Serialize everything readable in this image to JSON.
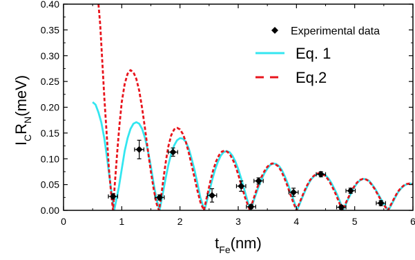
{
  "chart_data": {
    "type": "scatter",
    "xlabel": {
      "main": "t",
      "sub": "Fe",
      "unit": "(nm)"
    },
    "ylabel": {
      "p1": "I",
      "s1": "C",
      "p2": "R",
      "s2": "N",
      "unit": "(meV)"
    },
    "xlim": [
      0,
      6
    ],
    "ylim": [
      0,
      0.4
    ],
    "x_ticks": [
      "0",
      "1",
      "2",
      "3",
      "4",
      "5",
      "6"
    ],
    "y_ticks": [
      "0.00",
      "0.05",
      "0.10",
      "0.15",
      "0.20",
      "0.25",
      "0.30",
      "0.35",
      "0.40"
    ],
    "grid": false,
    "legend_position": "top-right",
    "series": [
      {
        "name": "Experimental data",
        "kind": "points",
        "color": "#000000",
        "points": [
          {
            "x": 0.85,
            "y": 0.027,
            "xerr": 0.08,
            "yerr": 0.005
          },
          {
            "x": 1.3,
            "y": 0.118,
            "xerr": 0.08,
            "yerr": 0.018
          },
          {
            "x": 1.65,
            "y": 0.025,
            "xerr": 0.08,
            "yerr": 0.005
          },
          {
            "x": 1.88,
            "y": 0.113,
            "xerr": 0.08,
            "yerr": 0.008
          },
          {
            "x": 2.55,
            "y": 0.029,
            "xerr": 0.08,
            "yerr": 0.013
          },
          {
            "x": 3.05,
            "y": 0.047,
            "xerr": 0.08,
            "yerr": 0.01
          },
          {
            "x": 3.22,
            "y": 0.007,
            "xerr": 0.08,
            "yerr": 0.004
          },
          {
            "x": 3.35,
            "y": 0.057,
            "xerr": 0.08,
            "yerr": 0.006
          },
          {
            "x": 3.95,
            "y": 0.035,
            "xerr": 0.08,
            "yerr": 0.008
          },
          {
            "x": 4.42,
            "y": 0.07,
            "xerr": 0.08,
            "yerr": 0.005
          },
          {
            "x": 4.77,
            "y": 0.006,
            "xerr": 0.08,
            "yerr": 0.004
          },
          {
            "x": 4.93,
            "y": 0.038,
            "xerr": 0.08,
            "yerr": 0.005
          },
          {
            "x": 5.45,
            "y": 0.014,
            "xerr": 0.08,
            "yerr": 0.005
          }
        ]
      },
      {
        "name": "Eq. 1",
        "kind": "line",
        "style": "solid",
        "color": "#33E6F0",
        "points": [
          [
            0.5,
            0.21
          ],
          [
            0.55,
            0.205
          ],
          [
            0.6,
            0.19
          ],
          [
            0.65,
            0.17
          ],
          [
            0.7,
            0.14
          ],
          [
            0.75,
            0.1
          ],
          [
            0.8,
            0.055
          ],
          [
            0.85,
            0.015
          ],
          [
            0.87,
            0.0
          ],
          [
            0.95,
            0.045
          ],
          [
            1.0,
            0.08
          ],
          [
            1.05,
            0.115
          ],
          [
            1.1,
            0.14
          ],
          [
            1.15,
            0.158
          ],
          [
            1.2,
            0.168
          ],
          [
            1.25,
            0.171
          ],
          [
            1.3,
            0.168
          ],
          [
            1.35,
            0.158
          ],
          [
            1.4,
            0.14
          ],
          [
            1.45,
            0.115
          ],
          [
            1.5,
            0.085
          ],
          [
            1.55,
            0.05
          ],
          [
            1.6,
            0.02
          ],
          [
            1.65,
            0.0
          ],
          [
            1.7,
            0.03
          ],
          [
            1.75,
            0.06
          ],
          [
            1.8,
            0.088
          ],
          [
            1.85,
            0.11
          ],
          [
            1.9,
            0.126
          ],
          [
            1.95,
            0.136
          ],
          [
            2.0,
            0.14
          ],
          [
            2.05,
            0.139
          ],
          [
            2.1,
            0.133
          ],
          [
            2.15,
            0.12
          ],
          [
            2.2,
            0.1
          ],
          [
            2.25,
            0.078
          ],
          [
            2.3,
            0.052
          ],
          [
            2.35,
            0.025
          ],
          [
            2.42,
            0.0
          ],
          [
            2.5,
            0.035
          ],
          [
            2.55,
            0.058
          ],
          [
            2.6,
            0.078
          ],
          [
            2.65,
            0.094
          ],
          [
            2.7,
            0.106
          ],
          [
            2.75,
            0.113
          ],
          [
            2.8,
            0.115
          ],
          [
            2.85,
            0.113
          ],
          [
            2.9,
            0.106
          ],
          [
            2.95,
            0.095
          ],
          [
            3.0,
            0.08
          ],
          [
            3.05,
            0.062
          ],
          [
            3.1,
            0.042
          ],
          [
            3.15,
            0.022
          ],
          [
            3.21,
            0.0
          ],
          [
            3.3,
            0.03
          ],
          [
            3.35,
            0.046
          ],
          [
            3.4,
            0.06
          ],
          [
            3.45,
            0.072
          ],
          [
            3.5,
            0.081
          ],
          [
            3.55,
            0.088
          ],
          [
            3.6,
            0.091
          ],
          [
            3.65,
            0.09
          ],
          [
            3.7,
            0.086
          ],
          [
            3.75,
            0.078
          ],
          [
            3.8,
            0.066
          ],
          [
            3.85,
            0.052
          ],
          [
            3.9,
            0.036
          ],
          [
            3.95,
            0.02
          ],
          [
            4.01,
            0.0
          ],
          [
            4.1,
            0.025
          ],
          [
            4.15,
            0.038
          ],
          [
            4.2,
            0.05
          ],
          [
            4.25,
            0.06
          ],
          [
            4.3,
            0.066
          ],
          [
            4.35,
            0.07
          ],
          [
            4.4,
            0.072
          ],
          [
            4.45,
            0.071
          ],
          [
            4.5,
            0.068
          ],
          [
            4.55,
            0.062
          ],
          [
            4.6,
            0.053
          ],
          [
            4.65,
            0.042
          ],
          [
            4.7,
            0.03
          ],
          [
            4.75,
            0.016
          ],
          [
            4.8,
            0.0
          ],
          [
            4.88,
            0.02
          ],
          [
            4.95,
            0.036
          ],
          [
            5.0,
            0.046
          ],
          [
            5.05,
            0.054
          ],
          [
            5.1,
            0.059
          ],
          [
            5.15,
            0.061
          ],
          [
            5.2,
            0.06
          ],
          [
            5.25,
            0.057
          ],
          [
            5.3,
            0.05
          ],
          [
            5.35,
            0.042
          ],
          [
            5.4,
            0.032
          ],
          [
            5.45,
            0.022
          ],
          [
            5.5,
            0.012
          ],
          [
            5.58,
            0.0
          ],
          [
            5.65,
            0.015
          ],
          [
            5.7,
            0.026
          ],
          [
            5.75,
            0.036
          ],
          [
            5.8,
            0.043
          ],
          [
            5.85,
            0.048
          ],
          [
            5.9,
            0.051
          ],
          [
            5.95,
            0.052
          ],
          [
            6.0,
            0.051
          ]
        ]
      },
      {
        "name": "Eq.2",
        "kind": "line",
        "style": "dashed",
        "color": "#E8141C",
        "points": [
          [
            0.6,
            0.4
          ],
          [
            0.63,
            0.36
          ],
          [
            0.66,
            0.3
          ],
          [
            0.7,
            0.22
          ],
          [
            0.74,
            0.15
          ],
          [
            0.78,
            0.08
          ],
          [
            0.82,
            0.03
          ],
          [
            0.85,
            0.0
          ],
          [
            0.88,
            0.05
          ],
          [
            0.92,
            0.11
          ],
          [
            0.96,
            0.165
          ],
          [
            1.0,
            0.21
          ],
          [
            1.05,
            0.245
          ],
          [
            1.1,
            0.265
          ],
          [
            1.15,
            0.272
          ],
          [
            1.2,
            0.268
          ],
          [
            1.25,
            0.255
          ],
          [
            1.3,
            0.232
          ],
          [
            1.35,
            0.198
          ],
          [
            1.4,
            0.158
          ],
          [
            1.45,
            0.115
          ],
          [
            1.5,
            0.075
          ],
          [
            1.55,
            0.04
          ],
          [
            1.6,
            0.012
          ],
          [
            1.64,
            0.0
          ],
          [
            1.68,
            0.03
          ],
          [
            1.72,
            0.065
          ],
          [
            1.76,
            0.097
          ],
          [
            1.8,
            0.124
          ],
          [
            1.85,
            0.146
          ],
          [
            1.9,
            0.157
          ],
          [
            1.95,
            0.16
          ],
          [
            2.0,
            0.157
          ],
          [
            2.05,
            0.148
          ],
          [
            2.1,
            0.133
          ],
          [
            2.15,
            0.112
          ],
          [
            2.2,
            0.088
          ],
          [
            2.25,
            0.063
          ],
          [
            2.3,
            0.038
          ],
          [
            2.35,
            0.016
          ],
          [
            2.41,
            0.0
          ],
          [
            2.47,
            0.03
          ],
          [
            2.52,
            0.056
          ],
          [
            2.57,
            0.078
          ],
          [
            2.62,
            0.095
          ],
          [
            2.67,
            0.107
          ],
          [
            2.72,
            0.114
          ],
          [
            2.77,
            0.116
          ],
          [
            2.82,
            0.113
          ],
          [
            2.87,
            0.106
          ],
          [
            2.92,
            0.095
          ],
          [
            2.97,
            0.08
          ],
          [
            3.02,
            0.062
          ],
          [
            3.07,
            0.043
          ],
          [
            3.12,
            0.024
          ],
          [
            3.2,
            0.0
          ],
          [
            3.28,
            0.028
          ],
          [
            3.33,
            0.045
          ],
          [
            3.38,
            0.06
          ],
          [
            3.43,
            0.072
          ],
          [
            3.48,
            0.082
          ],
          [
            3.53,
            0.088
          ],
          [
            3.58,
            0.091
          ],
          [
            3.63,
            0.09
          ],
          [
            3.68,
            0.086
          ],
          [
            3.73,
            0.078
          ],
          [
            3.78,
            0.066
          ],
          [
            3.83,
            0.052
          ],
          [
            3.88,
            0.036
          ],
          [
            3.93,
            0.02
          ],
          [
            4.0,
            0.0
          ],
          [
            4.08,
            0.022
          ],
          [
            4.13,
            0.036
          ],
          [
            4.18,
            0.048
          ],
          [
            4.23,
            0.058
          ],
          [
            4.28,
            0.065
          ],
          [
            4.33,
            0.07
          ],
          [
            4.38,
            0.072
          ],
          [
            4.43,
            0.071
          ],
          [
            4.48,
            0.068
          ],
          [
            4.53,
            0.062
          ],
          [
            4.58,
            0.053
          ],
          [
            4.63,
            0.042
          ],
          [
            4.68,
            0.03
          ],
          [
            4.73,
            0.016
          ],
          [
            4.79,
            0.0
          ],
          [
            4.87,
            0.02
          ],
          [
            4.94,
            0.036
          ],
          [
            4.99,
            0.046
          ],
          [
            5.04,
            0.054
          ],
          [
            5.09,
            0.059
          ],
          [
            5.14,
            0.061
          ],
          [
            5.19,
            0.06
          ],
          [
            5.24,
            0.057
          ],
          [
            5.29,
            0.05
          ],
          [
            5.34,
            0.042
          ],
          [
            5.39,
            0.032
          ],
          [
            5.44,
            0.022
          ],
          [
            5.49,
            0.012
          ],
          [
            5.57,
            0.0
          ],
          [
            5.64,
            0.015
          ],
          [
            5.69,
            0.026
          ],
          [
            5.74,
            0.036
          ],
          [
            5.79,
            0.043
          ],
          [
            5.84,
            0.048
          ],
          [
            5.89,
            0.051
          ],
          [
            5.94,
            0.052
          ],
          [
            6.0,
            0.051
          ]
        ]
      }
    ]
  }
}
